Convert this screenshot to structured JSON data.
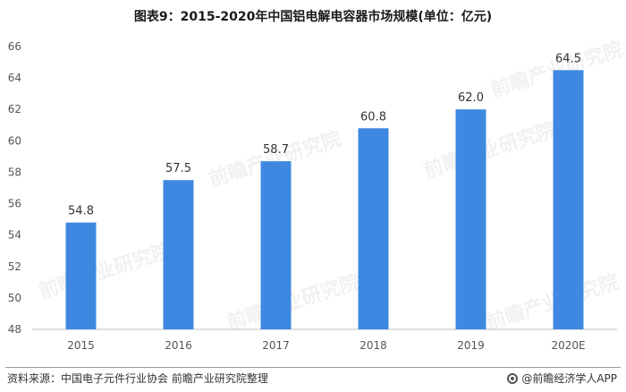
{
  "chart_data": {
    "type": "bar",
    "title": "图表9：2015-2020年中国铝电解电容器市场规模(单位：亿元)",
    "categories": [
      "2015",
      "2016",
      "2017",
      "2018",
      "2019",
      "2020E"
    ],
    "values": [
      54.8,
      57.5,
      58.7,
      60.8,
      62.0,
      64.5
    ],
    "value_labels": [
      "54.8",
      "57.5",
      "58.7",
      "60.8",
      "62.0",
      "64.5"
    ],
    "ylim": [
      48,
      66
    ],
    "yticks": [
      "48",
      "50",
      "52",
      "54",
      "56",
      "58",
      "60",
      "62",
      "64",
      "66"
    ],
    "grid": false,
    "legend": "none",
    "bar_color": "#3f88e2"
  },
  "footer": {
    "source": "资料来源：中国电子元件行业协会 前瞻产业研究院整理",
    "brand": "@前瞻经济学人APP"
  },
  "watermark": {
    "text": "前瞻产业研究院"
  }
}
